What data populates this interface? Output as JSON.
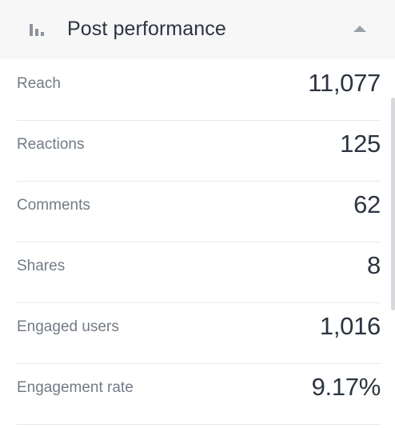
{
  "header": {
    "title": "Post performance",
    "icon": "bar-chart-icon",
    "toggle_icon": "caret-up-icon",
    "expanded": true
  },
  "metrics": [
    {
      "label": "Reach",
      "value": "11,077"
    },
    {
      "label": "Reactions",
      "value": "125"
    },
    {
      "label": "Comments",
      "value": "62"
    },
    {
      "label": "Shares",
      "value": "8"
    },
    {
      "label": "Engaged users",
      "value": "1,016"
    },
    {
      "label": "Engagement rate",
      "value": "9.17%"
    }
  ],
  "colors": {
    "header_background": "#f7f7f8",
    "title_text": "#2c3440",
    "label_text": "#737b85",
    "value_text": "#2c3440",
    "icon": "#8c939b",
    "divider": "#e6e8ea"
  }
}
